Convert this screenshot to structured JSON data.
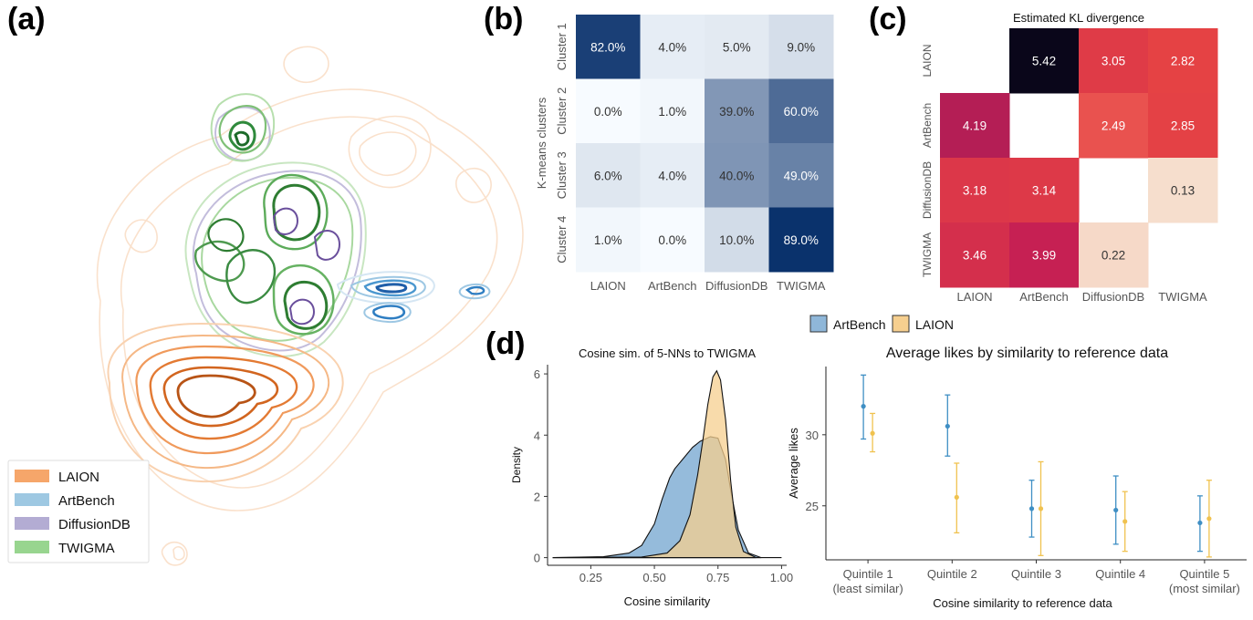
{
  "panels": {
    "a": {
      "letter": "(a)"
    },
    "b": {
      "letter": "(b)"
    },
    "c": {
      "letter": "(c)"
    },
    "d": {
      "letter": "(d)"
    }
  },
  "colors": {
    "laion": "#e8782f",
    "artbench": "#2b7bba",
    "diffusiondb": "#7b5fa8",
    "twigma": "#3d9a46",
    "density_artbench": "#8fb7d9",
    "density_laion": "#f6cf8f",
    "scatter_artbench": "#3f8fc4",
    "scatter_laion": "#f0c24f"
  },
  "chart_data": [
    {
      "id": "a",
      "type": "scatter",
      "title": "",
      "legend": {
        "placement": "bottom-left",
        "entries": [
          "LAION",
          "ArtBench",
          "DiffusionDB",
          "TWIGMA"
        ]
      }
    },
    {
      "id": "b",
      "type": "heatmap",
      "title": "",
      "ylabel": "K-means clusters",
      "rows": [
        "Cluster 1",
        "Cluster 2",
        "Cluster 3",
        "Cluster 4"
      ],
      "columns": [
        "LAION",
        "ArtBench",
        "DiffusionDB",
        "TWIGMA"
      ],
      "values": [
        [
          82,
          4,
          5,
          9
        ],
        [
          0,
          1,
          39,
          60
        ],
        [
          6,
          4,
          40,
          49
        ],
        [
          1,
          0,
          10,
          89
        ]
      ],
      "labels": [
        [
          "82.0%",
          "4.0%",
          "5.0%",
          "9.0%"
        ],
        [
          "0.0%",
          "1.0%",
          "39.0%",
          "60.0%"
        ],
        [
          "6.0%",
          "4.0%",
          "40.0%",
          "49.0%"
        ],
        [
          "1.0%",
          "0.0%",
          "10.0%",
          "89.0%"
        ]
      ]
    },
    {
      "id": "c",
      "type": "heatmap",
      "title": "Estimated KL divergence",
      "rows": [
        "LAION",
        "ArtBench",
        "DiffusionDB",
        "TWIGMA"
      ],
      "columns": [
        "LAION",
        "ArtBench",
        "DiffusionDB",
        "TWIGMA"
      ],
      "values": [
        [
          null,
          5.42,
          3.05,
          2.82
        ],
        [
          4.19,
          null,
          2.49,
          2.85
        ],
        [
          3.18,
          3.14,
          null,
          0.13
        ],
        [
          3.46,
          3.99,
          0.22,
          null
        ]
      ],
      "labels": [
        [
          "",
          "5.42",
          "3.05",
          "2.82"
        ],
        [
          "4.19",
          "",
          "2.49",
          "2.85"
        ],
        [
          "3.18",
          "3.14",
          "",
          "0.13"
        ],
        [
          "3.46",
          "3.99",
          "0.22",
          ""
        ]
      ]
    },
    {
      "id": "d-left",
      "type": "area",
      "title": "Cosine sim. of 5-NNs to TWIGMA",
      "xlabel": "Cosine similarity",
      "ylabel": "Density",
      "xlim": [
        0.08,
        1.02
      ],
      "ylim": [
        -0.25,
        6.3
      ],
      "xticks": [
        0.25,
        0.5,
        0.75,
        1.0
      ],
      "xtick_labels": [
        "0.25",
        "0.50",
        "0.75",
        "1.00"
      ],
      "yticks": [
        0,
        2,
        4,
        6
      ],
      "ytick_labels": [
        "0",
        "2",
        "4",
        "6"
      ],
      "series": [
        {
          "name": "ArtBench",
          "x": [
            0.1,
            0.3,
            0.4,
            0.45,
            0.5,
            0.53,
            0.56,
            0.58,
            0.6,
            0.62,
            0.65,
            0.68,
            0.72,
            0.75,
            0.78,
            0.8,
            0.83,
            0.87,
            0.92
          ],
          "y": [
            0,
            0.03,
            0.15,
            0.4,
            1.1,
            1.9,
            2.6,
            2.9,
            3.1,
            3.3,
            3.6,
            3.8,
            3.95,
            3.9,
            3.2,
            2.2,
            0.9,
            0.15,
            0
          ]
        },
        {
          "name": "LAION",
          "x": [
            0.1,
            0.45,
            0.55,
            0.6,
            0.64,
            0.67,
            0.69,
            0.71,
            0.73,
            0.745,
            0.76,
            0.78,
            0.8,
            0.82,
            0.85,
            0.9
          ],
          "y": [
            0,
            0.02,
            0.15,
            0.55,
            1.4,
            2.7,
            3.8,
            5.0,
            5.9,
            6.1,
            5.8,
            4.5,
            2.5,
            1.0,
            0.2,
            0
          ]
        }
      ]
    },
    {
      "id": "d-right",
      "type": "scatter",
      "title": "Average likes by similarity to reference data",
      "xlabel": "Cosine similarity to reference data",
      "ylabel": "Average likes",
      "ylim": [
        21.2,
        34.8
      ],
      "yticks": [
        25,
        30
      ],
      "ytick_labels": [
        "25",
        "30"
      ],
      "categories": [
        "Quintile 1",
        "Quintile 2",
        "Quintile 3",
        "Quintile 4",
        "Quintile 5"
      ],
      "category_sublabels": [
        "(least similar)",
        "",
        "",
        "",
        "(most similar)"
      ],
      "legend": {
        "placement": "top",
        "entries": [
          "ArtBench",
          "LAION"
        ]
      },
      "series": [
        {
          "name": "ArtBench",
          "values": [
            32.0,
            30.6,
            24.8,
            24.7,
            23.8
          ],
          "lower": [
            29.7,
            28.5,
            22.8,
            22.3,
            21.8
          ],
          "upper": [
            34.2,
            32.8,
            26.8,
            27.1,
            25.7
          ]
        },
        {
          "name": "LAION",
          "values": [
            30.1,
            25.6,
            24.8,
            23.9,
            24.1
          ],
          "lower": [
            28.8,
            23.1,
            21.5,
            21.8,
            21.4
          ],
          "upper": [
            31.5,
            28.0,
            28.1,
            26.0,
            26.8
          ]
        }
      ]
    }
  ]
}
